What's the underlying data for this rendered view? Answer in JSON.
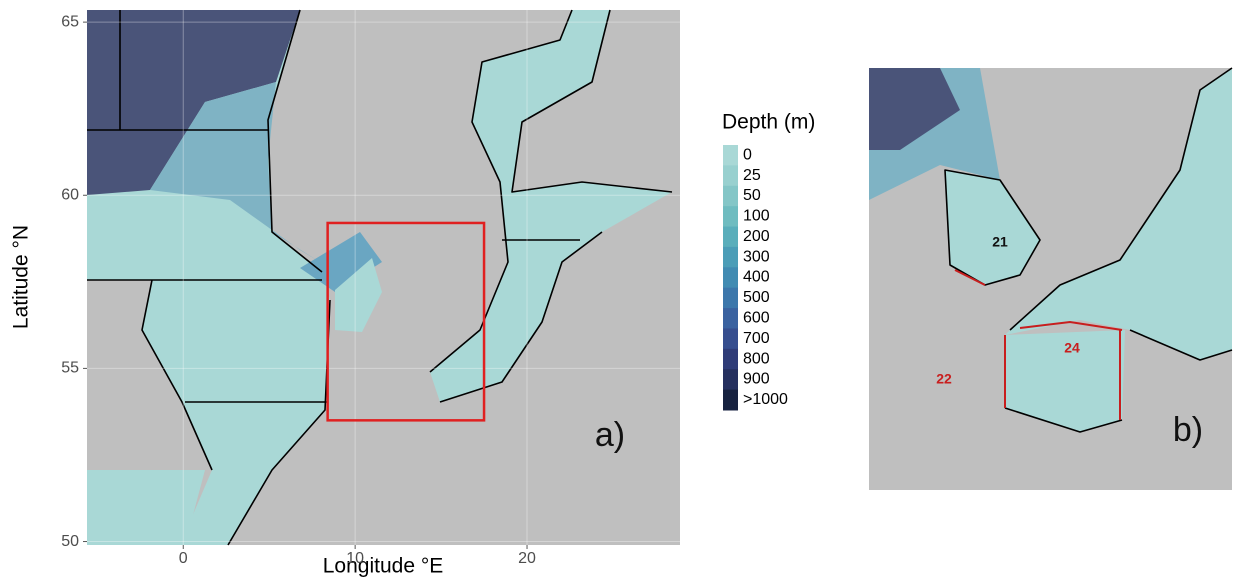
{
  "map_a": {
    "panel_label": "a)",
    "x_label": "Longitude °E",
    "y_label": "Latitude °N",
    "xlim": [
      -5.6,
      28.9
    ],
    "ylim": [
      49.9,
      65.35
    ],
    "xticks": [
      0,
      10,
      20
    ],
    "yticks": [
      50,
      55,
      60,
      65
    ],
    "inset_box": {
      "lon": [
        8.4,
        17.5
      ],
      "lat": [
        53.5,
        59.2
      ],
      "color": "#e02020"
    }
  },
  "legend": {
    "title": "Depth (m)",
    "entries": [
      {
        "label": "0",
        "color": "#a9d8d6"
      },
      {
        "label": "25",
        "color": "#98d0cf"
      },
      {
        "label": "50",
        "color": "#84c6c7"
      },
      {
        "label": "100",
        "color": "#6fbcc0"
      },
      {
        "label": "200",
        "color": "#5aaebb"
      },
      {
        "label": "300",
        "color": "#4b9db7"
      },
      {
        "label": "400",
        "color": "#418bb2"
      },
      {
        "label": "500",
        "color": "#3c77ab"
      },
      {
        "label": "600",
        "color": "#3a62a0"
      },
      {
        "label": "700",
        "color": "#364e8f"
      },
      {
        "label": "800",
        "color": "#2f3c78"
      },
      {
        "label": "900",
        "color": "#25305f"
      },
      {
        "label": ">1000",
        "color": "#172240"
      }
    ]
  },
  "map_b": {
    "panel_label": "b)",
    "areas": [
      {
        "label": "21",
        "color": "#111111"
      },
      {
        "label": "24",
        "color": "#c81e1e"
      },
      {
        "label": "22",
        "color": "#c81e1e"
      }
    ]
  }
}
